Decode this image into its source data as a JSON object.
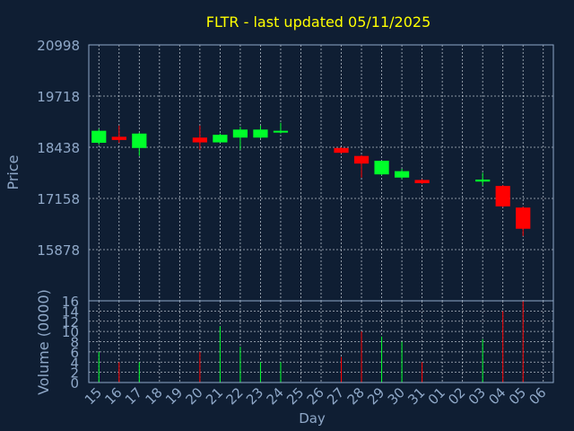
{
  "chart_data": {
    "type": "candlestick",
    "title": "FLTR - last updated 05/11/2025",
    "xlabel": "Day",
    "price_ylabel": "Price",
    "volume_ylabel": "Volume (0000)",
    "price_ticks": [
      "20998",
      "19718",
      "18438",
      "17158",
      "15878"
    ],
    "price_ylim": [
      14598,
      20998
    ],
    "volume_ticks": [
      "16",
      "14",
      "12",
      "10",
      "8",
      "6",
      "4",
      "2",
      "0"
    ],
    "volume_ylim": [
      0,
      16
    ],
    "days": [
      "15",
      "16",
      "17",
      "18",
      "19",
      "20",
      "21",
      "22",
      "23",
      "24",
      "25",
      "26",
      "27",
      "28",
      "29",
      "30",
      "31",
      "01",
      "02",
      "03",
      "04",
      "05",
      "06"
    ],
    "candles": [
      {
        "day": "15",
        "open": 18550,
        "close": 18850,
        "high": 18900,
        "low": 18500,
        "volume": 6
      },
      {
        "day": "16",
        "open": 18700,
        "close": 18620,
        "high": 18980,
        "low": 18550,
        "volume": 4
      },
      {
        "day": "17",
        "open": 18420,
        "close": 18780,
        "high": 18800,
        "low": 18220,
        "volume": 4
      },
      {
        "day": "20",
        "open": 18680,
        "close": 18560,
        "high": 18980,
        "low": 18380,
        "volume": 6
      },
      {
        "day": "21",
        "open": 18560,
        "close": 18750,
        "high": 18780,
        "low": 18560,
        "volume": 11
      },
      {
        "day": "22",
        "open": 18680,
        "close": 18880,
        "high": 18950,
        "low": 18380,
        "volume": 7
      },
      {
        "day": "23",
        "open": 18680,
        "close": 18880,
        "high": 18980,
        "low": 18660,
        "volume": 4
      },
      {
        "day": "24",
        "open": 18820,
        "close": 18850,
        "high": 19050,
        "low": 18780,
        "volume": 4
      },
      {
        "day": "27",
        "open": 18420,
        "close": 18300,
        "high": 18440,
        "low": 18280,
        "volume": 5
      },
      {
        "day": "28",
        "open": 18220,
        "close": 18030,
        "high": 18240,
        "low": 17680,
        "volume": 10
      },
      {
        "day": "29",
        "open": 17760,
        "close": 18100,
        "high": 18100,
        "low": 17740,
        "volume": 9
      },
      {
        "day": "30",
        "open": 17680,
        "close": 17840,
        "high": 17900,
        "low": 17640,
        "volume": 8
      },
      {
        "day": "31",
        "open": 17620,
        "close": 17540,
        "high": 17640,
        "low": 17520,
        "volume": 4
      },
      {
        "day": "03",
        "open": 17580,
        "close": 17630,
        "high": 17800,
        "low": 17480,
        "volume": 8.5
      },
      {
        "day": "04",
        "open": 17470,
        "close": 16960,
        "high": 17490,
        "low": 16940,
        "volume": 14
      },
      {
        "day": "05",
        "open": 16930,
        "close": 16400,
        "high": 16950,
        "low": 16220,
        "volume": 16
      }
    ],
    "colors": {
      "up": "#00ff2a",
      "down": "#ff0000",
      "neutral": "#00ff2a",
      "grid": "#d0d8e0",
      "axis": "#8fa8c8",
      "title": "#ffff00",
      "background": "#0f1e33"
    },
    "grid": true
  }
}
